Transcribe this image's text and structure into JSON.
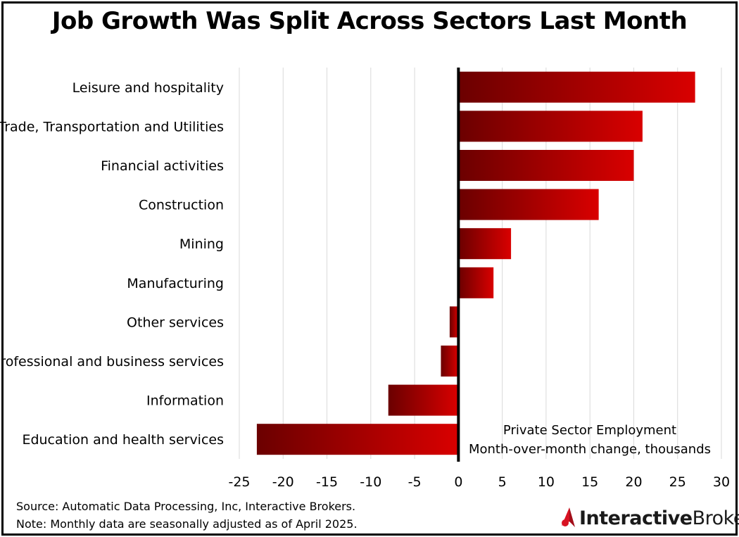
{
  "title": "Job Growth Was Split Across Sectors Last Month",
  "colors": {
    "bar_dark": "#6b0000",
    "bar_light": "#d90000",
    "grid": "#d9d9d9",
    "axis": "#000000",
    "brand_red": "#d81222"
  },
  "chart_data": {
    "type": "bar",
    "orientation": "horizontal",
    "title": "Job Growth Was Split Across Sectors Last Month",
    "categories": [
      "Leisure and hospitality",
      "Trade, Transportation and Utilities",
      "Financial activities",
      "Construction",
      "Mining",
      "Manufacturing",
      "Other services",
      "Professional and business services",
      "Information",
      "Education and health services"
    ],
    "values": [
      27,
      21,
      20,
      16,
      6,
      4,
      -1,
      -2,
      -8,
      -23
    ],
    "xlim": [
      -25,
      30
    ],
    "xticks": [
      -25,
      -20,
      -15,
      -10,
      -5,
      0,
      5,
      10,
      15,
      20,
      25,
      30
    ],
    "grid": true,
    "annotation": [
      "Private Sector Employment",
      "Month-over-month change, thousands"
    ],
    "xlabel": "",
    "ylabel": ""
  },
  "footer": {
    "source": "Source: Automatic Data Processing, Inc, Interactive Brokers.",
    "note": "Note: Monthly data are seasonally adjusted as of April 2025."
  },
  "brand": {
    "part1": "Interactive",
    "part2": "Brokers",
    "icon": "interactive-brokers-logo-icon"
  }
}
